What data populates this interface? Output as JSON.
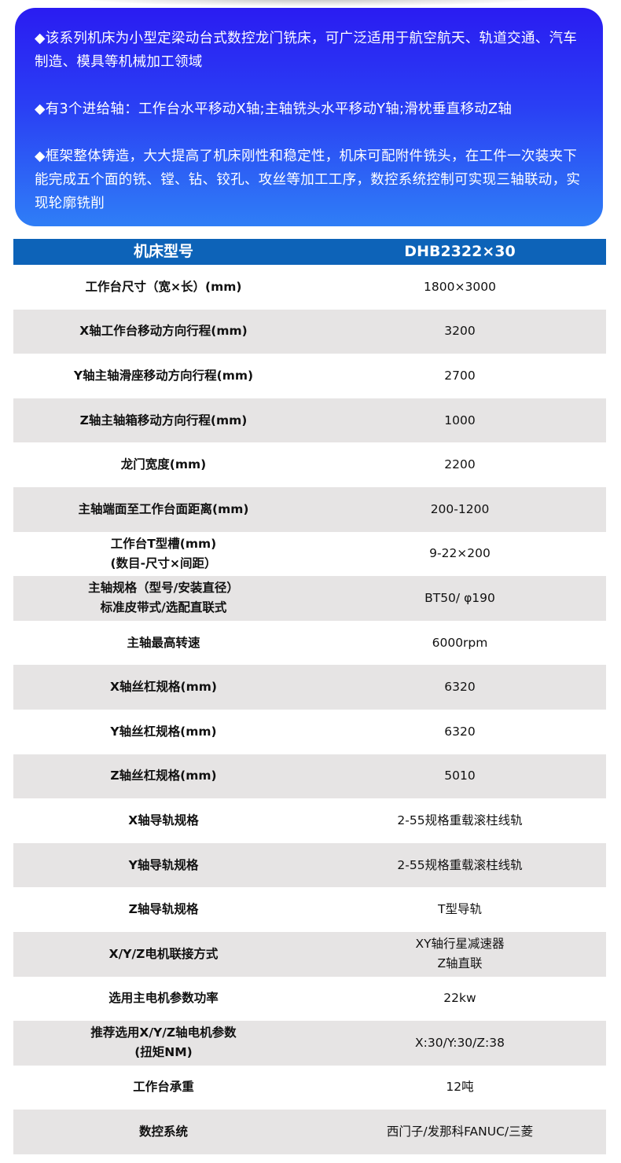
{
  "intro": {
    "paragraphs": [
      "◆该系列机床为小型定梁动台式数控龙门铣床，可广泛适用于航空航天、轨道交通、汽车制造、模具等机械加工领域",
      "◆有3个进给轴：工作台水平移动X轴;主轴铣头水平移动Y轴;滑枕垂直移动Z轴",
      "◆框架整体铸造，大大提高了机床刚性和稳定性，机床可配附件铣头，在工件一次装夹下能完成五个面的铣、镗、钻、铰孔、攻丝等加工工序，数控系统控制可实现三轴联动，实现轮廓铣削"
    ],
    "gradient": [
      "#2a1cf2",
      "#2f7ef6"
    ]
  },
  "table": {
    "header": {
      "label": "机床型号",
      "value": "DHB2322×30",
      "color": "#0d63b8"
    },
    "rows": [
      {
        "label": [
          "工作台尺寸（宽×长）(mm)"
        ],
        "value": [
          "1800×3000"
        ]
      },
      {
        "label": [
          "X轴工作台移动方向行程(mm)"
        ],
        "value": [
          "3200"
        ]
      },
      {
        "label": [
          "Y轴主轴滑座移动方向行程(mm)"
        ],
        "value": [
          "2700"
        ]
      },
      {
        "label": [
          "Z轴主轴箱移动方向行程(mm)"
        ],
        "value": [
          "1000"
        ]
      },
      {
        "label": [
          "龙门宽度(mm)"
        ],
        "value": [
          "2200"
        ]
      },
      {
        "label": [
          "主轴端面至工作台面距离(mm)"
        ],
        "value": [
          "200-1200"
        ]
      },
      {
        "label": [
          "工作台T型槽(mm)",
          "(数目-尺寸×间距）"
        ],
        "value": [
          "9-22×200"
        ]
      },
      {
        "label": [
          "主轴规格（型号/安装直径）",
          "标准皮带式/选配直联式"
        ],
        "value": [
          "BT50/ φ190"
        ]
      },
      {
        "label": [
          "主轴最高转速"
        ],
        "value": [
          "6000rpm"
        ]
      },
      {
        "label": [
          "X轴丝杠规格(mm)"
        ],
        "value": [
          "6320"
        ]
      },
      {
        "label": [
          "Y轴丝杠规格(mm)"
        ],
        "value": [
          "6320"
        ]
      },
      {
        "label": [
          "Z轴丝杠规格(mm)"
        ],
        "value": [
          "5010"
        ]
      },
      {
        "label": [
          "X轴导轨规格"
        ],
        "value": [
          "2-55规格重载滚柱线轨"
        ]
      },
      {
        "label": [
          "Y轴导轨规格"
        ],
        "value": [
          "2-55规格重载滚柱线轨"
        ]
      },
      {
        "label": [
          "Z轴导轨规格"
        ],
        "value": [
          "T型导轨"
        ]
      },
      {
        "label": [
          "X/Y/Z电机联接方式"
        ],
        "value": [
          "XY轴行星减速器",
          "Z轴直联"
        ]
      },
      {
        "label": [
          "选用主电机参数功率"
        ],
        "value": [
          "22kw"
        ]
      },
      {
        "label": [
          "推荐选用X/Y/Z轴电机参数",
          "(扭矩NM)"
        ],
        "value": [
          "X:30/Y:30/Z:38"
        ]
      },
      {
        "label": [
          "工作台承重"
        ],
        "value": [
          "12吨"
        ]
      },
      {
        "label": [
          "数控系统"
        ],
        "value": [
          "西门子/发那科FANUC/三菱"
        ]
      }
    ]
  }
}
